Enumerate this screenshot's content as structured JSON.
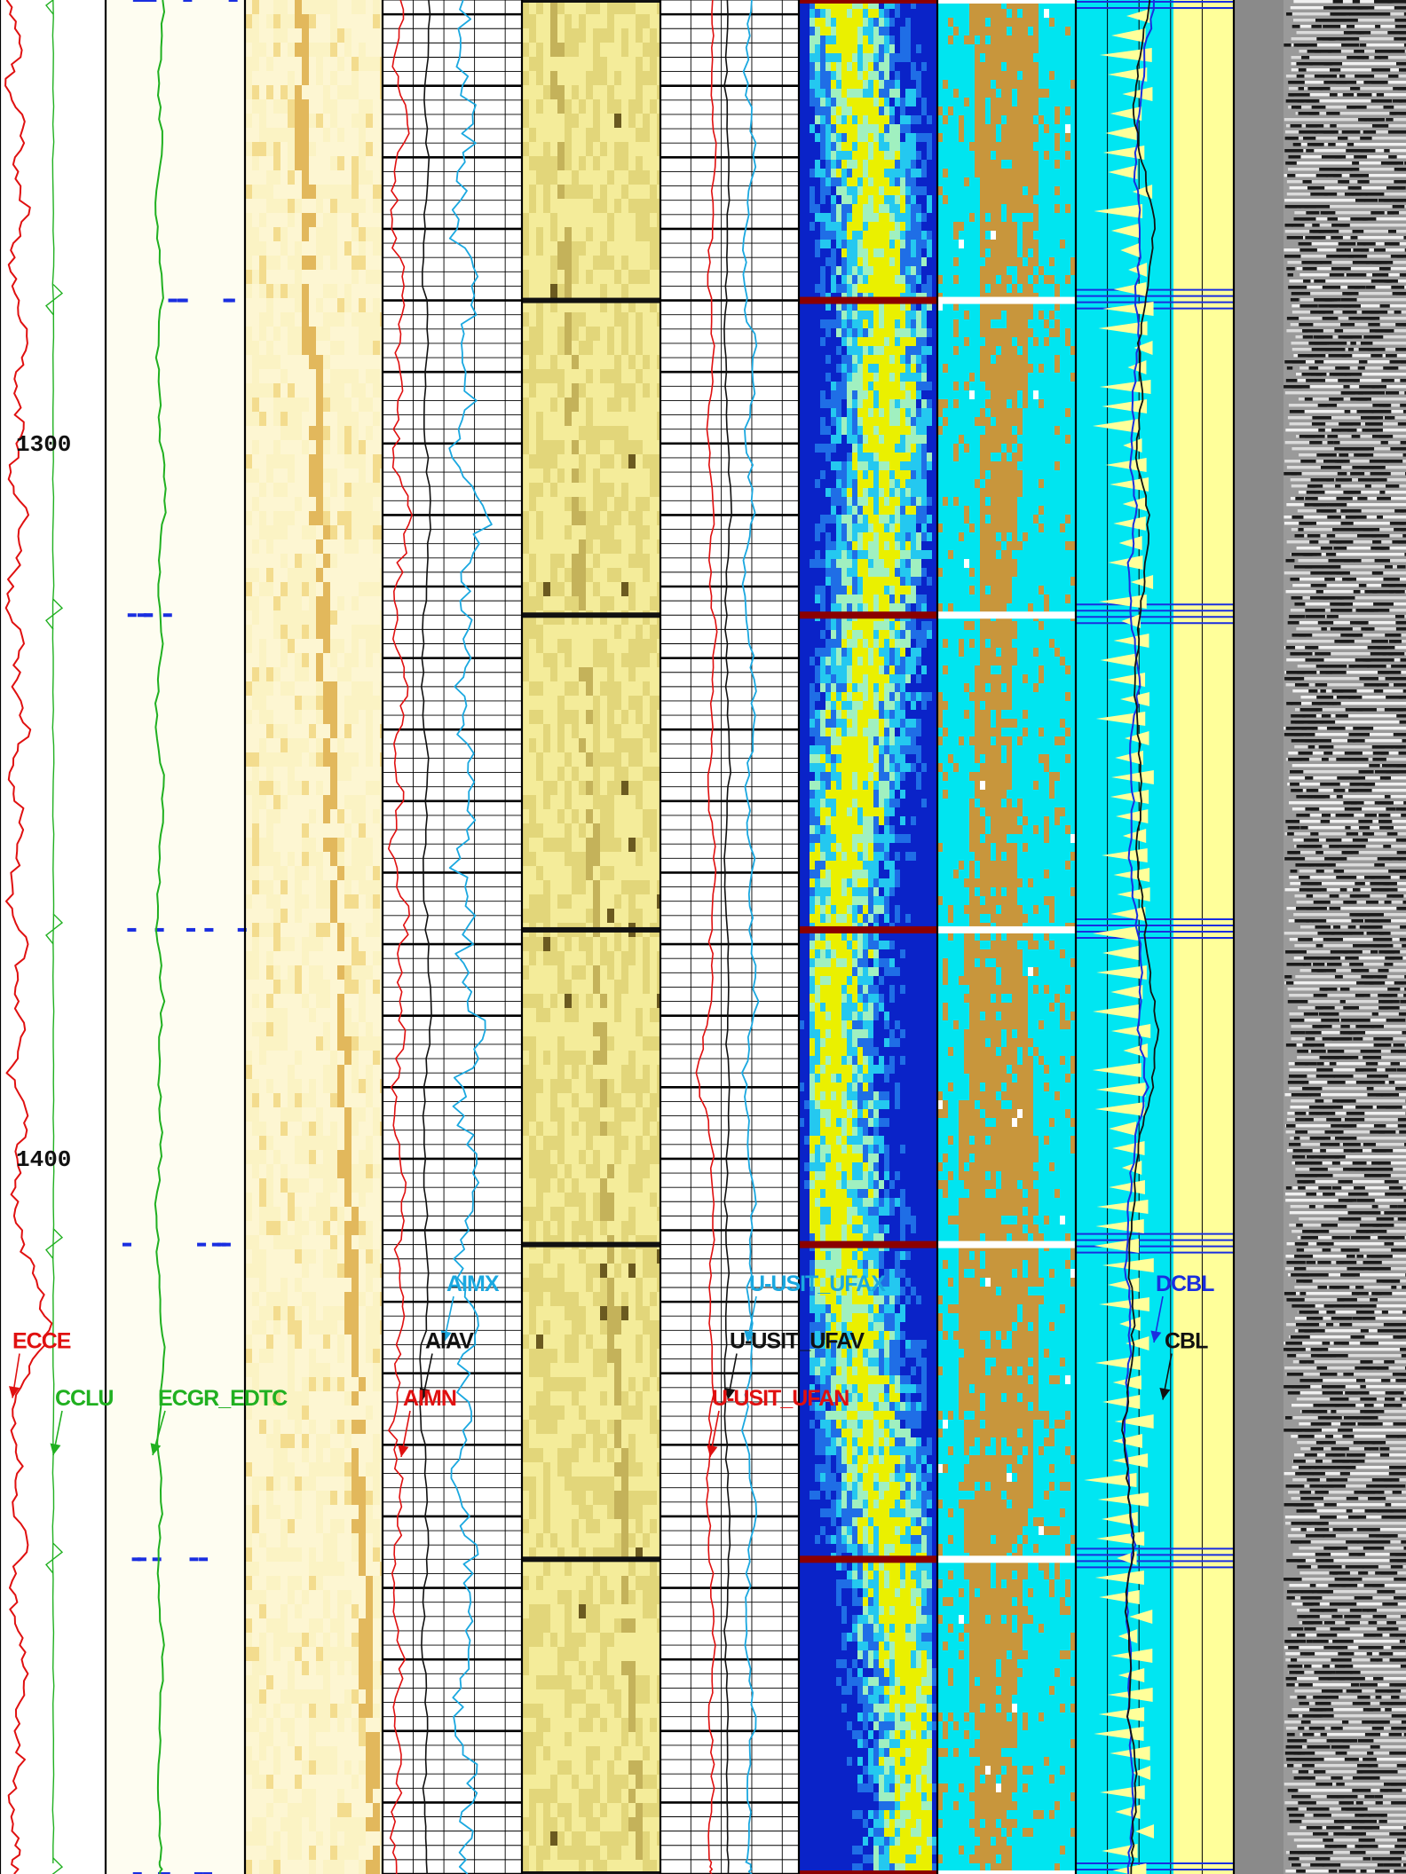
{
  "chart_data": {
    "type": "line",
    "title": "",
    "depth_axis": {
      "direction": "down",
      "range": [
        1238,
        1500
      ],
      "tick_labels": [
        "1300",
        "1400"
      ],
      "tick_values": [
        1300,
        1400
      ]
    },
    "casing_collars": [
      1238,
      1280,
      1324,
      1368,
      1412,
      1456,
      1500
    ],
    "tracks": [
      {
        "name": "correlation",
        "curves": [
          {
            "name": "ECCE",
            "color": "#e01010",
            "label_depth": 1426.5,
            "depths": [
              1238,
              1244,
              1250,
              1256,
              1262,
              1268,
              1274,
              1280,
              1286,
              1292,
              1298,
              1304,
              1310,
              1316,
              1322,
              1328,
              1334,
              1340,
              1346,
              1352,
              1358,
              1364,
              1370,
              1376,
              1382,
              1388,
              1394,
              1400,
              1406,
              1412,
              1418,
              1424,
              1430,
              1436,
              1442,
              1448,
              1454,
              1460,
              1466,
              1472,
              1478,
              1484,
              1490,
              1496,
              1500
            ],
            "values": [
              0.3,
              0.6,
              0.2,
              0.7,
              0.4,
              0.8,
              0.3,
              0.5,
              0.9,
              0.4,
              0.6,
              0.3,
              0.7,
              0.5,
              0.2,
              0.6,
              0.4,
              0.8,
              0.3,
              0.6,
              0.5,
              0.2,
              0.7,
              0.4,
              0.6,
              0.3,
              0.8,
              0.5,
              0.4,
              0.6,
              1.1,
              1.4,
              0.8,
              0.3,
              0.6,
              0.4,
              0.7,
              0.3,
              0.5,
              0.8,
              0.4,
              0.6,
              0.3,
              0.5,
              0.4
            ]
          },
          {
            "name": "CCLU",
            "color": "#20b020",
            "label_depth": 1434.5,
            "values": []
          },
          {
            "name": "ECGR_EDTC",
            "color": "#20b020",
            "label_depth": 1434.5,
            "depths": [
              1238,
              1248,
              1258,
              1268,
              1278,
              1288,
              1298,
              1308,
              1318,
              1328,
              1338,
              1348,
              1358,
              1368,
              1378,
              1388,
              1398,
              1408,
              1418,
              1428,
              1438,
              1448,
              1458,
              1468,
              1478,
              1488,
              1498,
              1500
            ],
            "values": [
              42,
              38,
              40,
              36,
              41,
              37,
              39,
              43,
              38,
              40,
              36,
              42,
              39,
              37,
              41,
              38,
              40,
              36,
              39,
              42,
              37,
              40,
              38,
              41,
              39,
              37,
              40,
              39
            ]
          }
        ]
      },
      {
        "name": "amplitude",
        "curves": [
          {
            "name": "AIMX",
            "color": "#1aa8e0",
            "label_depth": 1418.5,
            "depths": [
              1238,
              1246,
              1254,
              1262,
              1270,
              1278,
              1286,
              1294,
              1302,
              1310,
              1318,
              1326,
              1334,
              1342,
              1350,
              1358,
              1366,
              1374,
              1382,
              1390,
              1398,
              1406,
              1414,
              1422,
              1430,
              1438,
              1446,
              1454,
              1462,
              1470,
              1478,
              1486,
              1494,
              1500
            ],
            "values": [
              6.0,
              5.2,
              6.5,
              5.8,
              4.9,
              6.8,
              5.5,
              6.2,
              5.0,
              7.5,
              5.9,
              6.4,
              5.3,
              6.0,
              6.7,
              5.1,
              6.3,
              5.6,
              7.2,
              5.4,
              6.1,
              6.9,
              5.2,
              6.4,
              5.7,
              6.0,
              5.3,
              6.6,
              5.8,
              6.2,
              5.0,
              6.5,
              5.9,
              6.1
            ]
          },
          {
            "name": "AIAV",
            "color": "#111111",
            "label_depth": 1426.5,
            "depths": [
              1238,
              1250,
              1262,
              1274,
              1286,
              1298,
              1310,
              1322,
              1334,
              1346,
              1358,
              1370,
              1382,
              1394,
              1406,
              1418,
              1430,
              1442,
              1454,
              1466,
              1478,
              1490,
              1500
            ],
            "values": [
              3.4,
              3.0,
              3.3,
              2.9,
              3.2,
              3.0,
              3.5,
              3.1,
              2.8,
              3.3,
              3.0,
              3.2,
              3.4,
              2.9,
              3.1,
              3.3,
              2.7,
              3.0,
              3.2,
              2.9,
              3.1,
              3.0,
              3.2
            ]
          },
          {
            "name": "AIMN",
            "color": "#e01010",
            "label_depth": 1434.5,
            "depths": [
              1238,
              1246,
              1254,
              1262,
              1270,
              1278,
              1286,
              1294,
              1302,
              1310,
              1318,
              1326,
              1334,
              1342,
              1350,
              1358,
              1366,
              1374,
              1382,
              1390,
              1398,
              1406,
              1414,
              1422,
              1430,
              1438,
              1446,
              1454,
              1462,
              1470,
              1478,
              1486,
              1494,
              1500
            ],
            "values": [
              1.5,
              0.8,
              1.9,
              1.1,
              0.6,
              1.7,
              1.0,
              1.4,
              0.7,
              2.0,
              1.2,
              0.9,
              1.6,
              1.0,
              1.3,
              0.6,
              1.8,
              1.1,
              1.5,
              0.8,
              1.2,
              1.6,
              0.9,
              1.4,
              1.0,
              0.7,
              1.3,
              1.1,
              0.6,
              1.5,
              0.9,
              1.2,
              0.8,
              1.0
            ]
          }
        ]
      },
      {
        "name": "ultrasonic",
        "curves": [
          {
            "name": "U-USIT_UFAX",
            "color": "#1aa8e0",
            "label_depth": 1418.5,
            "depths": [
              1238,
              1248,
              1258,
              1268,
              1278,
              1288,
              1298,
              1308,
              1318,
              1328,
              1338,
              1348,
              1358,
              1368,
              1378,
              1388,
              1398,
              1408,
              1418,
              1428,
              1438,
              1448,
              1458,
              1468,
              1478,
              1488,
              1498,
              1500
            ],
            "values": [
              6.6,
              6.2,
              6.8,
              6.4,
              6.0,
              6.9,
              6.3,
              6.7,
              6.1,
              6.5,
              6.8,
              6.2,
              6.6,
              6.4,
              6.9,
              6.0,
              6.5,
              6.7,
              6.3,
              6.6,
              6.1,
              6.8,
              6.4,
              6.2,
              6.7,
              6.5,
              6.3,
              6.6
            ]
          },
          {
            "name": "U-USIT_UFAV",
            "color": "#111111",
            "label_depth": 1426.5,
            "depths": [
              1238,
              1250,
              1262,
              1274,
              1286,
              1298,
              1310,
              1322,
              1334,
              1346,
              1358,
              1370,
              1382,
              1394,
              1406,
              1418,
              1430,
              1442,
              1454,
              1466,
              1478,
              1490,
              1500
            ],
            "values": [
              4.9,
              4.7,
              5.0,
              4.8,
              4.6,
              4.9,
              5.1,
              4.7,
              4.8,
              5.0,
              4.6,
              4.9,
              4.8,
              5.0,
              4.7,
              4.9,
              4.6,
              4.8,
              5.0,
              4.7,
              4.9,
              4.8,
              4.9
            ]
          },
          {
            "name": "U-USIT_UFAN",
            "color": "#e01010",
            "label_depth": 1434.5,
            "depths": [
              1238,
              1248,
              1258,
              1268,
              1278,
              1288,
              1298,
              1308,
              1318,
              1328,
              1338,
              1348,
              1358,
              1368,
              1378,
              1388,
              1398,
              1408,
              1418,
              1428,
              1438,
              1448,
              1458,
              1468,
              1478,
              1488,
              1498,
              1500
            ],
            "values": [
              3.9,
              3.6,
              4.0,
              3.7,
              3.5,
              3.9,
              3.4,
              3.8,
              3.6,
              4.0,
              3.7,
              3.5,
              3.9,
              3.6,
              3.8,
              2.6,
              3.7,
              3.9,
              3.5,
              3.8,
              3.6,
              3.4,
              3.7,
              3.9,
              3.6,
              3.8,
              3.5,
              3.7
            ]
          }
        ]
      },
      {
        "name": "bond",
        "curves": [
          {
            "name": "DCBL",
            "color": "#1a2ee0",
            "label_depth": 1418.5,
            "depths": [
              1238,
              1246,
              1254,
              1262,
              1270,
              1278,
              1286,
              1294,
              1302,
              1310,
              1318,
              1326,
              1334,
              1342,
              1350,
              1358,
              1366,
              1374,
              1382,
              1390,
              1398,
              1406,
              1414,
              1422,
              1430,
              1438,
              1446,
              1454,
              1462,
              1470,
              1478,
              1486,
              1494,
              1500
            ],
            "values": [
              30,
              26,
              24,
              22,
              25,
              23,
              24,
              22,
              21,
              23,
              20,
              22,
              24,
              21,
              22,
              20,
              23,
              25,
              24,
              27,
              22,
              20,
              19,
              21,
              20,
              18,
              20,
              22,
              19,
              21,
              20,
              22,
              21,
              20
            ]
          },
          {
            "name": "CBL",
            "color": "#111111",
            "label_depth": 1426.5,
            "depths": [
              1238,
              1246,
              1254,
              1262,
              1270,
              1278,
              1286,
              1294,
              1302,
              1310,
              1318,
              1326,
              1334,
              1342,
              1350,
              1358,
              1366,
              1374,
              1382,
              1390,
              1398,
              1406,
              1414,
              1422,
              1430,
              1438,
              1446,
              1454,
              1462,
              1470,
              1478,
              1486,
              1494,
              1500
            ],
            "values": [
              28,
              24,
              22,
              26,
              30,
              27,
              24,
              25,
              23,
              28,
              26,
              24,
              22,
              24,
              25,
              23,
              26,
              28,
              31,
              29,
              24,
              22,
              20,
              22,
              21,
              18,
              20,
              22,
              19,
              21,
              20,
              23,
              22,
              21
            ]
          }
        ]
      }
    ],
    "image_tracks": [
      {
        "name": "acoustic-amplitude-image-1",
        "palette": [
          "#fbf3c4",
          "#f3dc8e",
          "#e2b85c",
          "#b77a2a"
        ]
      },
      {
        "name": "acoustic-amplitude-image-2",
        "palette": [
          "#f4ec9a",
          "#e2d67a",
          "#c4b25a",
          "#6b5a20"
        ]
      },
      {
        "name": "impedance-image",
        "palette": [
          "#0a23c8",
          "#1f6ee6",
          "#24c8f0",
          "#a0f0c0",
          "#eaf000"
        ]
      },
      {
        "name": "cement-map",
        "palette": [
          "#00e5f0",
          "#c8963c",
          "#ffffff"
        ]
      },
      {
        "name": "vdl-waveform",
        "palette": [
          "#ffffff",
          "#000000"
        ]
      }
    ]
  }
}
